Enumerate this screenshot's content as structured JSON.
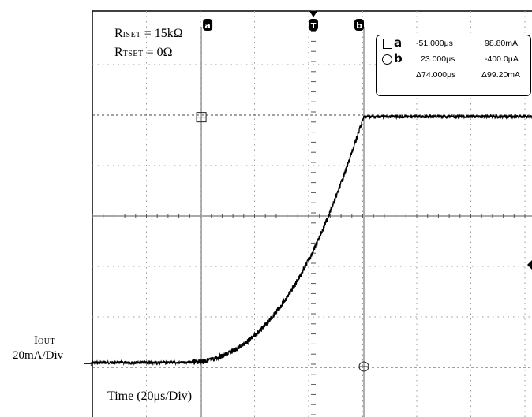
{
  "chart_data": {
    "type": "line",
    "title": "",
    "xlabel": "Time (20µs/Div)",
    "ylabel": "IOUT 20mA/Div",
    "x_units": "µs",
    "y_units": "mA",
    "x_per_div": 20,
    "y_per_div": 20,
    "xlim": [
      -140,
      60
    ],
    "ylim": [
      -10,
      150
    ],
    "grid": true,
    "series": [
      {
        "x": [
          -140,
          -100,
          -80,
          -60,
          -51,
          -45,
          -40,
          -35,
          -30,
          -25,
          -20,
          -15,
          -10,
          -5,
          0,
          5,
          10,
          15,
          20,
          23,
          30,
          40,
          50,
          60
        ],
        "y": [
          0,
          0,
          0,
          0,
          0.4,
          1.5,
          3.2,
          5.5,
          8.5,
          12.3,
          17.0,
          22.5,
          29.0,
          36.5,
          45.0,
          55.0,
          66.0,
          78.0,
          91.0,
          99.0,
          99.0,
          99.0,
          99.0,
          99.0
        ]
      }
    ]
  },
  "conditions": {
    "riset_main": "R",
    "riset_sub": "ISET",
    "riset_val": " = 15kΩ",
    "rtset_main": "R",
    "rtset_sub": "TSET",
    "rtset_val": " = 0Ω"
  },
  "axis": {
    "iout_main": "I",
    "iout_sub": "OUT",
    "ydiv": "20mA/Div",
    "time": "Time (20μs/Div)",
    "arrow": "→"
  },
  "cursors": {
    "a_letter": "a",
    "b_letter": "b",
    "trigger_letter": "T",
    "a_time": "-51.000μs",
    "a_value": "98.80mA",
    "b_time": "23.000μs",
    "b_value": "-400.0μA",
    "delta_time": "Δ74.000μs",
    "delta_value": "Δ99.20mA",
    "a_x": -51,
    "b_x": 23,
    "trigger_x": 0,
    "square_y": 98.8,
    "circle_y": 0
  },
  "colors": {
    "trace": "#000000",
    "grid": "#9a9a9a",
    "cursor": "#a8a8a8",
    "level_marker": "#222222"
  }
}
